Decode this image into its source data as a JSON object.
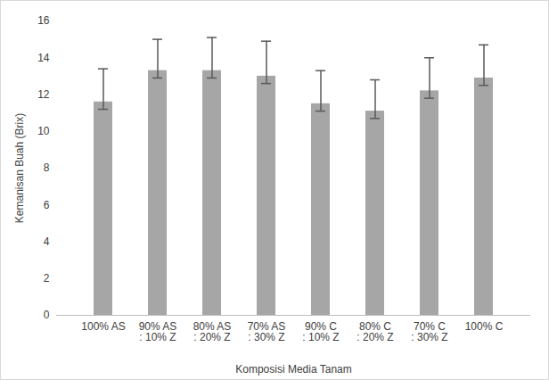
{
  "chart_data": {
    "type": "bar",
    "x_label": "Komposisi Media Tanam",
    "y_label": "Kemanisan Buah (Brix)",
    "categories": [
      "100% AS",
      "90% AS : 10% Z",
      "80% AS : 20% Z",
      "70% AS : 30% Z",
      "90% C : 10% Z",
      "80% C : 20% Z",
      "70% C : 30% Z",
      "100% C"
    ],
    "values": [
      11.6,
      13.3,
      13.3,
      13.0,
      11.5,
      11.1,
      12.2,
      12.9
    ],
    "error_bars": {
      "lower": [
        0.4,
        0.4,
        0.4,
        0.4,
        0.4,
        0.4,
        0.4,
        0.4
      ],
      "upper": [
        1.8,
        1.7,
        1.8,
        1.9,
        1.8,
        1.7,
        1.8,
        1.8
      ]
    },
    "color": "#a6a6a6",
    "ylim": [
      0,
      16
    ],
    "yticks": [
      0,
      2,
      4,
      6,
      8,
      10,
      12,
      14,
      16
    ],
    "grid": false
  }
}
